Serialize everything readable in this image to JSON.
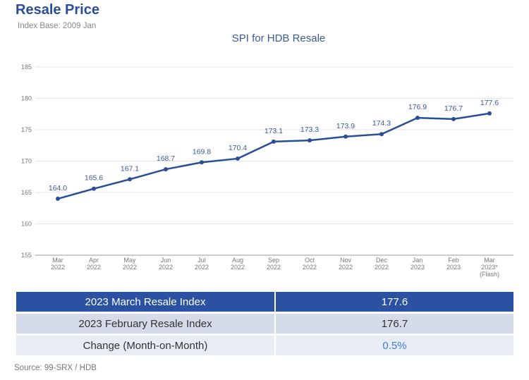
{
  "header": {
    "title": "Resale Price",
    "subtitle": "Index Base: 2009 Jan"
  },
  "chart_data": {
    "type": "line",
    "title": "SPI for HDB Resale",
    "categories": [
      [
        "Mar",
        "2022"
      ],
      [
        "Apr",
        "2022"
      ],
      [
        "May",
        "2022"
      ],
      [
        "Jun",
        "2022"
      ],
      [
        "Jul",
        "2022"
      ],
      [
        "Aug",
        "2022"
      ],
      [
        "Sep",
        "2022"
      ],
      [
        "Oct",
        "2022"
      ],
      [
        "Nov",
        "2022"
      ],
      [
        "Dec",
        "2022"
      ],
      [
        "Jan",
        "2023"
      ],
      [
        "Feb",
        "2023"
      ],
      [
        "Mar",
        "2023*",
        "(Flash)"
      ]
    ],
    "values": [
      164.0,
      165.6,
      167.1,
      168.7,
      169.8,
      170.4,
      173.1,
      173.3,
      173.9,
      174.3,
      176.9,
      176.7,
      177.6
    ],
    "ylim": [
      155,
      185
    ],
    "yticks": [
      155,
      160,
      165,
      170,
      175,
      180,
      185
    ],
    "grid": true,
    "color": "#2a4e96"
  },
  "table": [
    {
      "label": "2023 March Resale Index",
      "value": "177.6"
    },
    {
      "label": "2023 February Resale Index",
      "value": "176.7"
    },
    {
      "label": "Change (Month-on-Month)",
      "value": "0.5%"
    }
  ],
  "source": "Source: 99-SRX / HDB"
}
